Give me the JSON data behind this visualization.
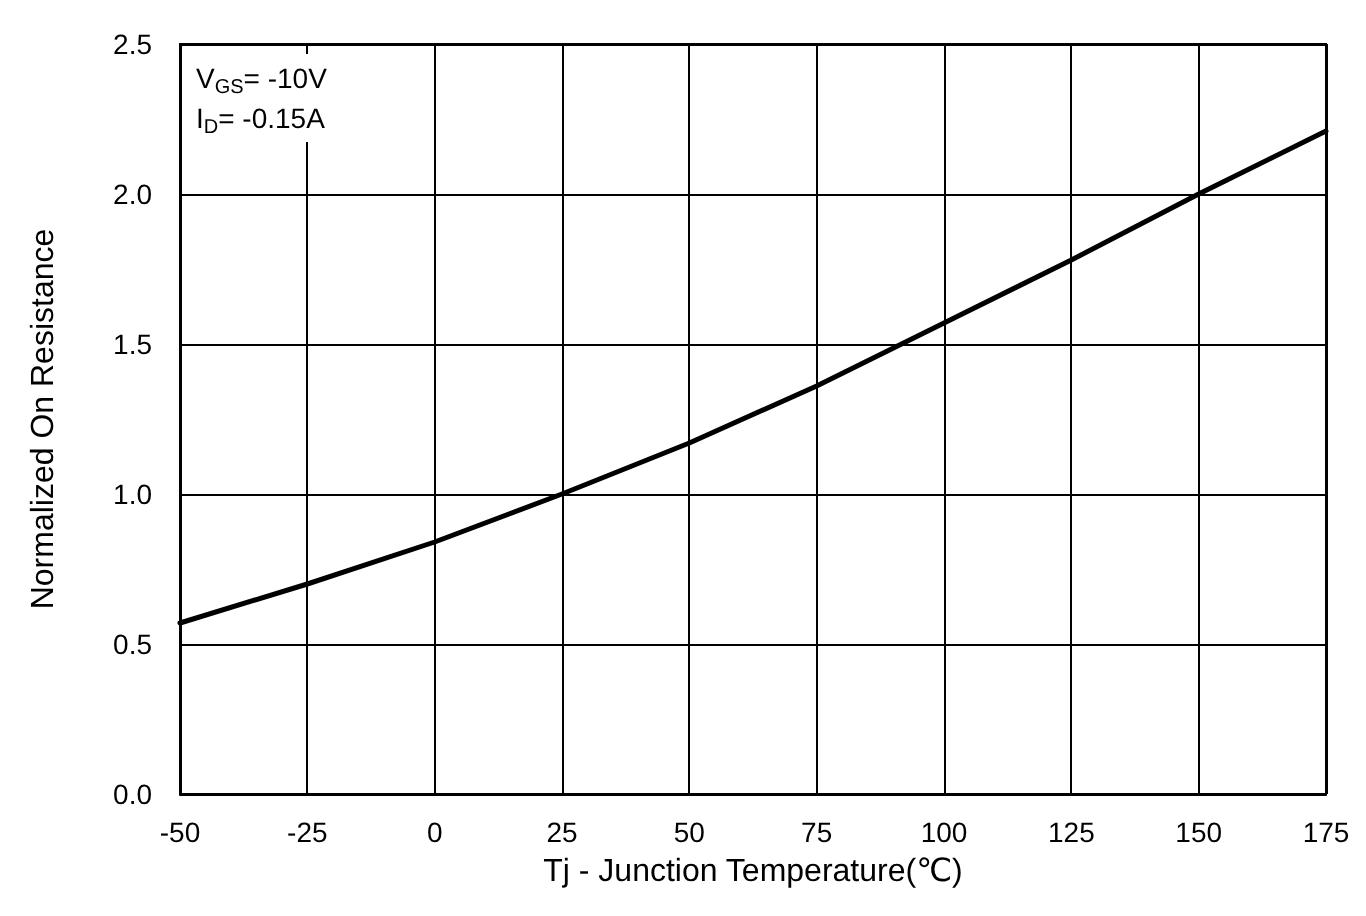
{
  "chart_data": {
    "type": "line",
    "xlabel": "Tj - Junction Temperature(℃)",
    "ylabel": "Normalized On Resistance",
    "x": [
      -50,
      -25,
      0,
      25,
      50,
      75,
      100,
      125,
      150,
      175
    ],
    "series": [
      {
        "color": "#000000",
        "values": [
          0.57,
          0.7,
          0.84,
          1.0,
          1.17,
          1.36,
          1.57,
          1.78,
          2.0,
          2.21
        ]
      }
    ],
    "xlim": [
      -50,
      175
    ],
    "xticks": [
      -50,
      -25,
      0,
      25,
      50,
      75,
      100,
      125,
      150,
      175
    ],
    "ylim": [
      0,
      2.5
    ],
    "yticks": [
      {
        "value": 0,
        "label": "0.0"
      },
      0.5,
      {
        "value": 1,
        "label": "1.0"
      },
      1.5,
      {
        "value": 2,
        "label": "2.0"
      },
      2.5
    ],
    "grid": true,
    "marker": "none",
    "line_style": "solid",
    "annotations": [
      "V$_{GS}$= -10V",
      "I$_{D}$= -0.15A"
    ]
  }
}
